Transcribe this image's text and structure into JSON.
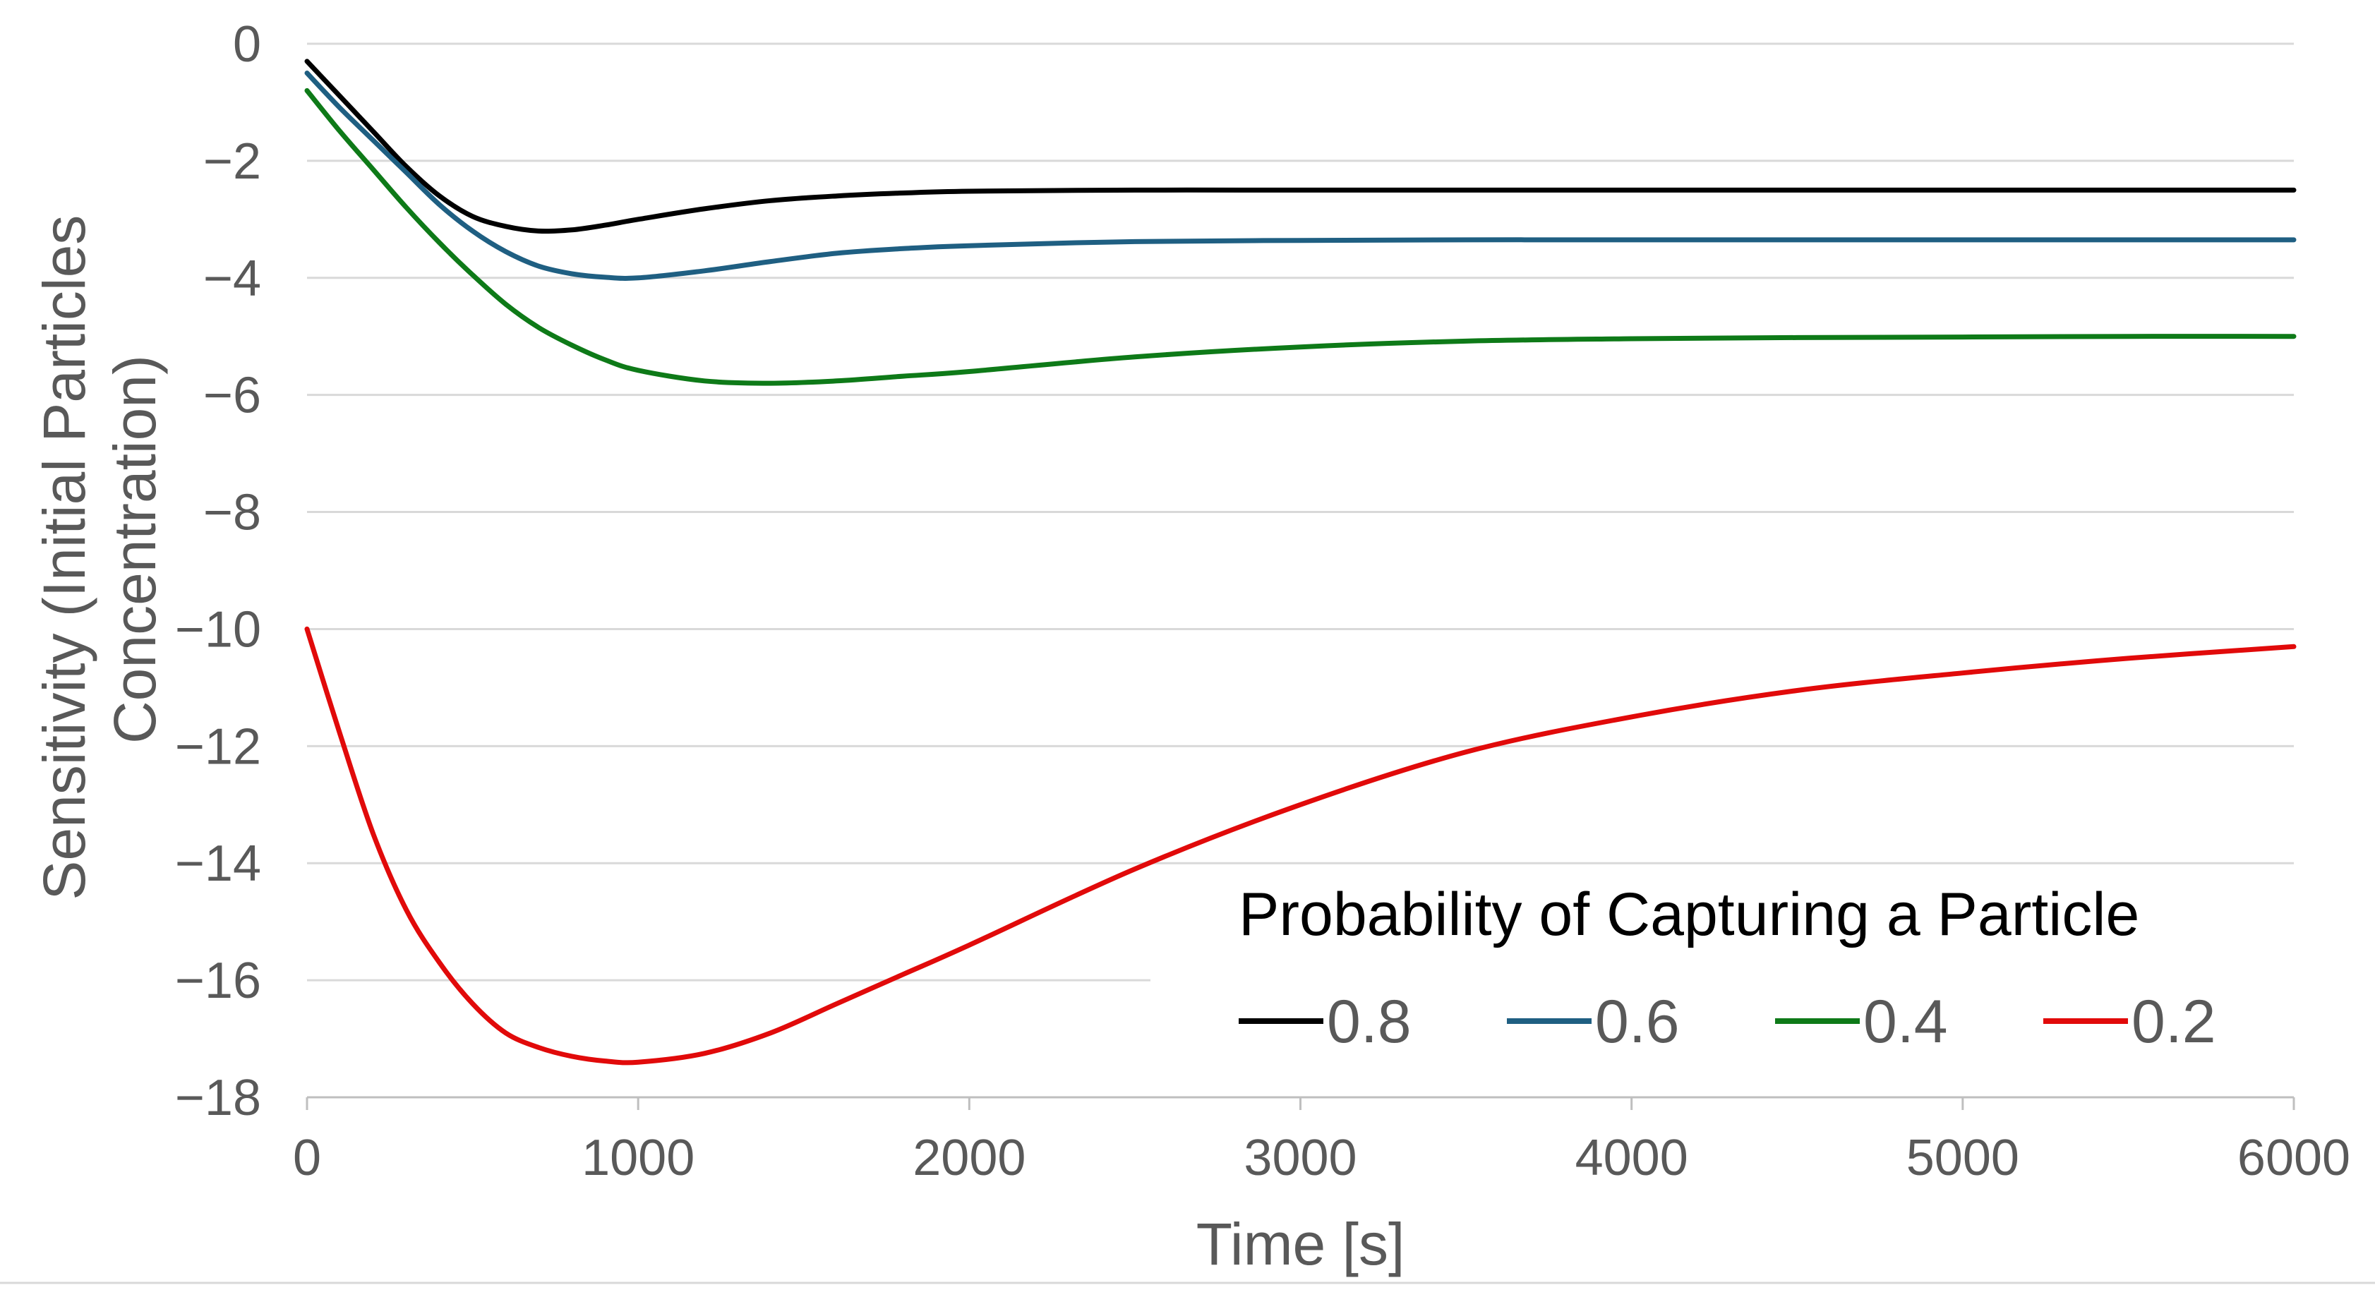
{
  "chart_data": {
    "type": "line",
    "title": "",
    "xlabel": "Time [s]",
    "ylabel_lines": [
      "Sensitivity (Initial Particles",
      "Concentration)"
    ],
    "xlim": [
      0,
      6000
    ],
    "ylim": [
      -18,
      0
    ],
    "x_ticks": [
      0,
      1000,
      2000,
      3000,
      4000,
      5000,
      6000
    ],
    "x_tick_labels": [
      "0",
      "1000",
      "2000",
      "3000",
      "4000",
      "5000",
      "6000"
    ],
    "y_ticks": [
      0,
      -2,
      -4,
      -6,
      -8,
      -10,
      -12,
      -14,
      -16,
      -18
    ],
    "y_tick_labels": [
      "0",
      "−2",
      "−4",
      "−6",
      "−8",
      "−10",
      "−12",
      "−14",
      "−16",
      "−18"
    ],
    "grid": true,
    "legend": {
      "title": "Probability of Capturing a Particle",
      "placement": "bottom-right"
    },
    "series": [
      {
        "name": "0.8",
        "color": "#000000",
        "x": [
          0,
          100,
          200,
          300,
          400,
          500,
          600,
          700,
          800,
          900,
          1000,
          1200,
          1400,
          1600,
          1800,
          2000,
          2500,
          3000,
          3500,
          4000,
          4500,
          5000,
          5500,
          6000
        ],
        "y": [
          -0.3,
          -0.9,
          -1.5,
          -2.1,
          -2.6,
          -2.95,
          -3.12,
          -3.2,
          -3.18,
          -3.1,
          -3.0,
          -2.82,
          -2.68,
          -2.6,
          -2.55,
          -2.52,
          -2.5,
          -2.5,
          -2.5,
          -2.5,
          -2.5,
          -2.5,
          -2.5,
          -2.5
        ]
      },
      {
        "name": "0.6",
        "color": "#1f5f82",
        "x": [
          0,
          100,
          200,
          300,
          400,
          500,
          600,
          700,
          800,
          900,
          1000,
          1200,
          1400,
          1600,
          1800,
          2000,
          2500,
          3000,
          3500,
          4000,
          4500,
          5000,
          5500,
          6000
        ],
        "y": [
          -0.5,
          -1.1,
          -1.65,
          -2.2,
          -2.75,
          -3.2,
          -3.55,
          -3.8,
          -3.93,
          -3.99,
          -4.0,
          -3.88,
          -3.72,
          -3.58,
          -3.5,
          -3.45,
          -3.38,
          -3.36,
          -3.35,
          -3.35,
          -3.35,
          -3.35,
          -3.35,
          -3.35
        ]
      },
      {
        "name": "0.4",
        "color": "#0e7a18",
        "x": [
          0,
          100,
          200,
          300,
          400,
          500,
          600,
          700,
          800,
          900,
          1000,
          1200,
          1400,
          1600,
          1800,
          2000,
          2500,
          3000,
          3500,
          4000,
          4500,
          5000,
          5500,
          6000
        ],
        "y": [
          -0.8,
          -1.5,
          -2.15,
          -2.8,
          -3.4,
          -3.95,
          -4.45,
          -4.85,
          -5.15,
          -5.4,
          -5.58,
          -5.76,
          -5.8,
          -5.76,
          -5.68,
          -5.6,
          -5.35,
          -5.18,
          -5.08,
          -5.04,
          -5.02,
          -5.01,
          -5.0,
          -5.0
        ]
      },
      {
        "name": "0.2",
        "color": "#e10a0a",
        "x": [
          0,
          100,
          200,
          300,
          400,
          500,
          600,
          700,
          800,
          900,
          1000,
          1200,
          1400,
          1600,
          1800,
          2000,
          2500,
          3000,
          3500,
          4000,
          4500,
          5000,
          5500,
          6000
        ],
        "y": [
          -10.0,
          -11.8,
          -13.5,
          -14.8,
          -15.7,
          -16.4,
          -16.9,
          -17.15,
          -17.3,
          -17.38,
          -17.4,
          -17.25,
          -16.9,
          -16.4,
          -15.9,
          -15.4,
          -14.1,
          -13.0,
          -12.1,
          -11.5,
          -11.05,
          -10.75,
          -10.5,
          -10.3
        ]
      }
    ]
  }
}
